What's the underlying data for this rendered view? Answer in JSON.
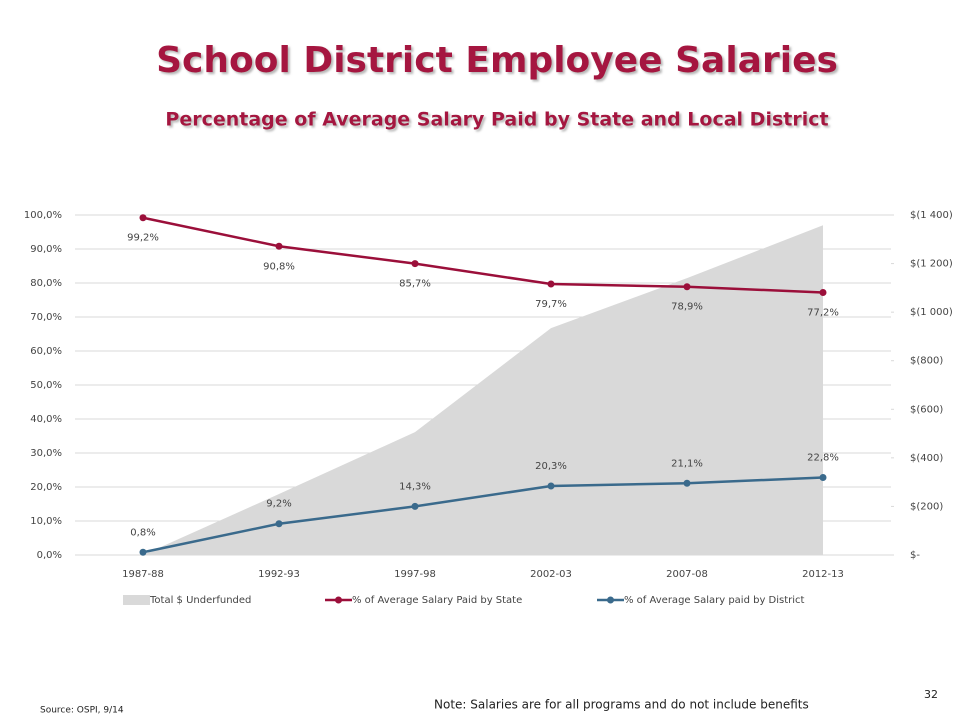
{
  "chart_data": {
    "type": "combo",
    "title": "School District Employee Salaries",
    "subtitle": "Percentage of Average Salary Paid by State  and Local District",
    "categories": [
      "1987-88",
      "1992-93",
      "1997-98",
      "2002-03",
      "2007-08",
      "2012-13"
    ],
    "series": [
      {
        "name": "Total $ Underfunded",
        "type": "area",
        "axis": "y2",
        "color": "#d9d9d9",
        "values": [
          0,
          -251,
          -506,
          -934,
          -1140,
          -1358
        ]
      },
      {
        "name": "% of Average Salary Paid by State",
        "type": "line",
        "color": "#9b0f3a",
        "values": [
          99.2,
          90.8,
          85.7,
          79.7,
          78.9,
          77.2
        ],
        "value_labels": [
          "99,2%",
          "90,8%",
          "85,7%",
          "79,7%",
          "78,9%",
          "77,2%"
        ]
      },
      {
        "name": "% of Average Salary paid by District",
        "type": "line",
        "color": "#3a6a8c",
        "values": [
          0.8,
          9.2,
          14.3,
          20.3,
          21.1,
          22.8
        ],
        "value_labels": [
          "0,8%",
          "9,2%",
          "14,3%",
          "20,3%",
          "21,1%",
          "22,8%"
        ]
      }
    ],
    "ylim": [
      0,
      100
    ],
    "yticks": [
      {
        "value": 0,
        "label": "0,0%"
      },
      {
        "value": 10,
        "label": "10,0%"
      },
      {
        "value": 20,
        "label": "20,0%"
      },
      {
        "value": 30,
        "label": "30,0%"
      },
      {
        "value": 40,
        "label": "40,0%"
      },
      {
        "value": 50,
        "label": "50,0%"
      },
      {
        "value": 60,
        "label": "60,0%"
      },
      {
        "value": 70,
        "label": "70,0%"
      },
      {
        "value": 80,
        "label": "80,0%"
      },
      {
        "value": 90,
        "label": "90,0%"
      },
      {
        "value": 100,
        "label": "100,0%"
      }
    ],
    "y2lim": [
      0,
      -1400
    ],
    "y2ticks": [
      {
        "value": 0,
        "label": "$-"
      },
      {
        "value": -200,
        "label": "$(200)"
      },
      {
        "value": -400,
        "label": "$(400)"
      },
      {
        "value": -600,
        "label": "$(600)"
      },
      {
        "value": -800,
        "label": "$(800)"
      },
      {
        "value": -1000,
        "label": "$(1 000)"
      },
      {
        "value": -1200,
        "label": "$(1 200)"
      },
      {
        "value": -1400,
        "label": "$(1 400)"
      }
    ],
    "grid": true,
    "legend": "bottom",
    "source": "Source: OSPI, 9/14",
    "note": "Note: Salaries are for all programs and do not include benefits",
    "slide_number": "32"
  }
}
